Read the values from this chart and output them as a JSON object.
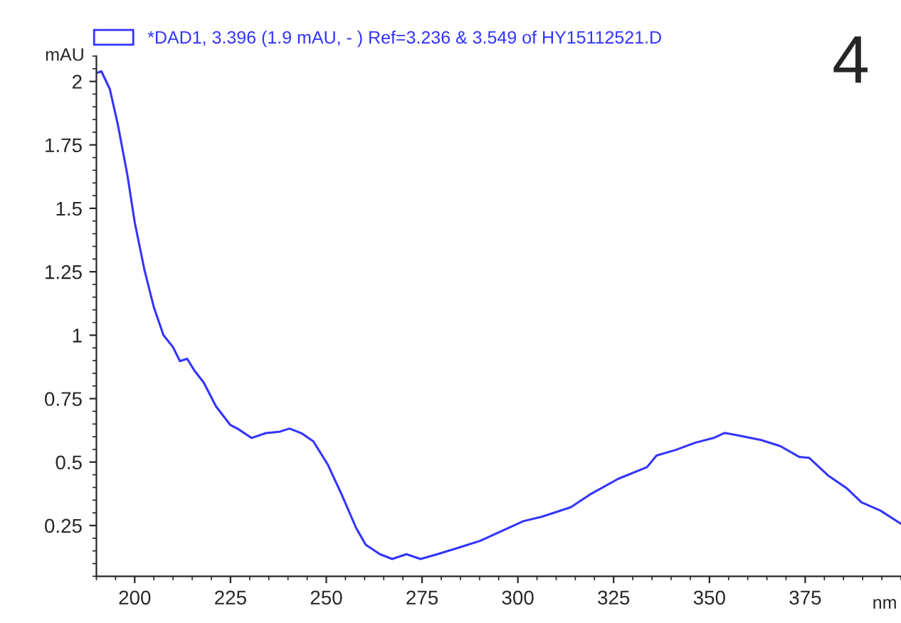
{
  "chart_data": {
    "type": "line",
    "xlabel": "nm",
    "ylabel": "mAU",
    "annotations": [
      "4"
    ],
    "legend": "top",
    "grid": false,
    "xlim": [
      190,
      400
    ],
    "xticks": [
      200,
      225,
      250,
      275,
      300,
      325,
      350,
      375
    ],
    "ylim": [
      0.05,
      2.1
    ],
    "yticks": [
      0.25,
      0.5,
      0.75,
      1,
      1.25,
      1.5,
      1.75,
      2
    ],
    "series": [
      {
        "name": "*DAD1, 3.396 (1.9 mAU, - ) Ref=3.236 & 3.549 of HY15112521.D",
        "color": "#3333ff",
        "x": [
          190.4,
          191.3,
          193.5,
          195.6,
          198.1,
          200,
          202.5,
          205,
          207.5,
          210,
          211.8,
          213.7,
          215.6,
          218,
          221.2,
          224.9,
          226.8,
          230.5,
          234.2,
          237.9,
          240.4,
          243.5,
          246.6,
          250.4,
          254.1,
          257.8,
          260.3,
          264,
          267.2,
          270.9,
          274.6,
          279,
          284,
          290.2,
          301.4,
          306.3,
          313.8,
          318.8,
          326.2,
          333.7,
          336.2,
          341.2,
          346.2,
          351.1,
          354,
          357.3,
          363.5,
          368.5,
          373.5,
          376,
          381,
          385.9,
          389.7,
          394.6,
          400
        ],
        "values": [
          2.035,
          2.04,
          1.97,
          1.83,
          1.63,
          1.445,
          1.26,
          1.11,
          1.0,
          0.953,
          0.898,
          0.907,
          0.86,
          0.814,
          0.72,
          0.647,
          0.632,
          0.595,
          0.614,
          0.62,
          0.632,
          0.614,
          0.582,
          0.49,
          0.369,
          0.24,
          0.174,
          0.137,
          0.118,
          0.137,
          0.118,
          0.137,
          0.16,
          0.19,
          0.267,
          0.285,
          0.322,
          0.372,
          0.434,
          0.48,
          0.526,
          0.548,
          0.576,
          0.595,
          0.615,
          0.606,
          0.587,
          0.563,
          0.52,
          0.517,
          0.447,
          0.396,
          0.341,
          0.309,
          0.257
        ]
      }
    ]
  }
}
